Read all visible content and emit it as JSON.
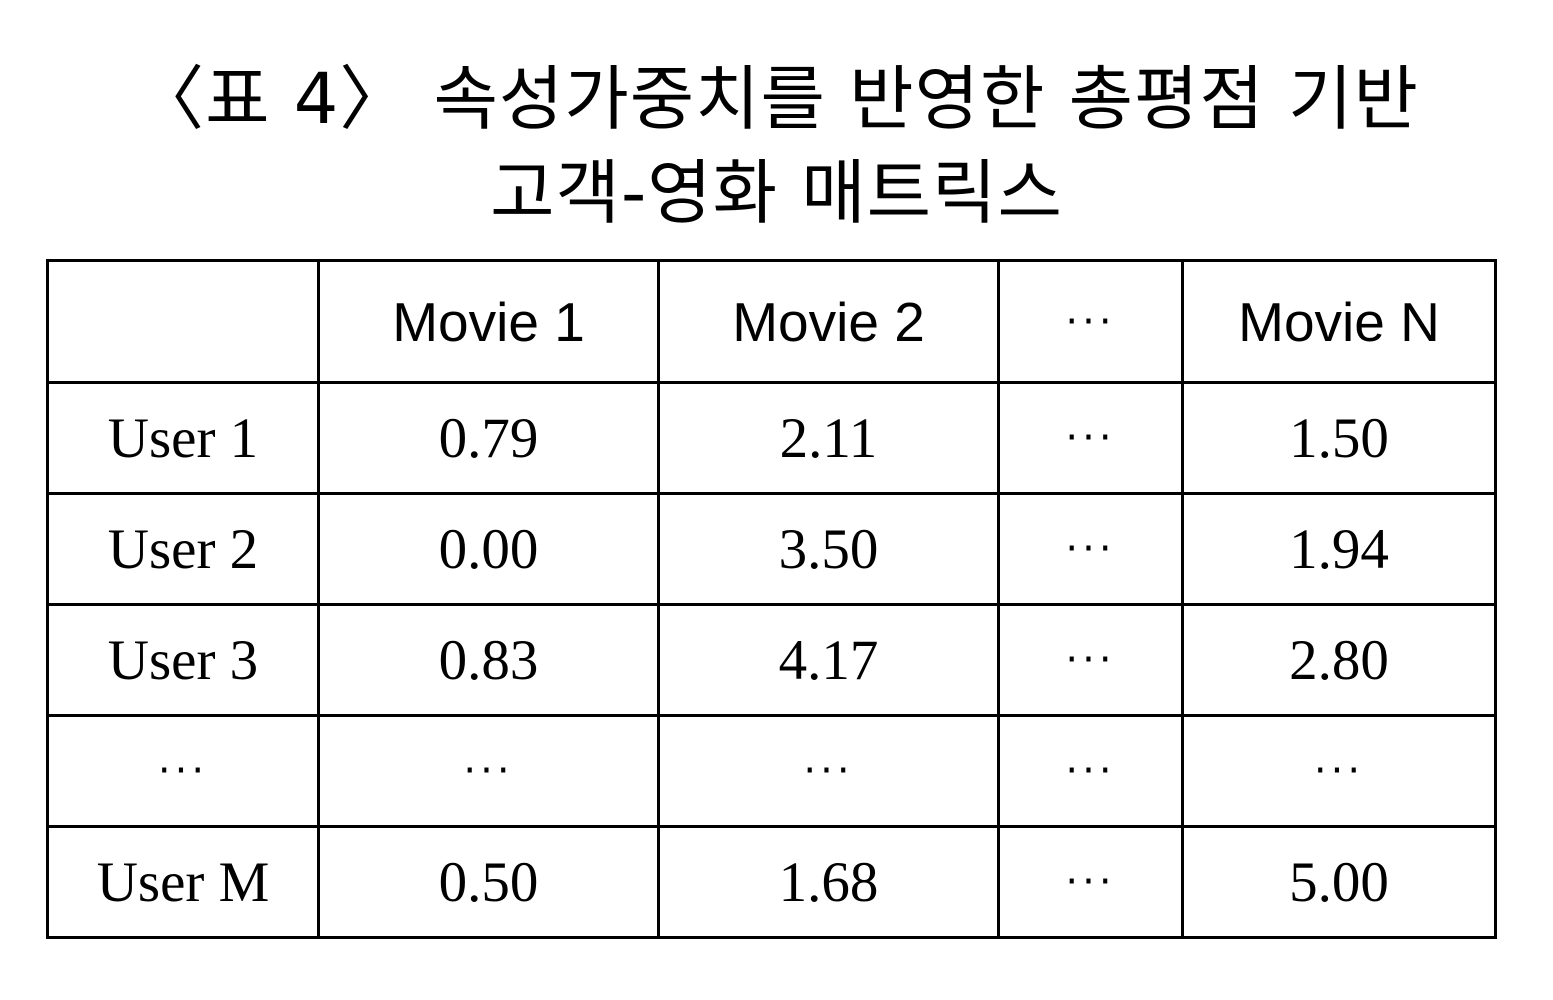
{
  "caption": {
    "line1": "〈표 4〉 속성가중치를 반영한 총평점 기반",
    "line2": "고객-영화 매트릭스"
  },
  "table": {
    "header": [
      "",
      "Movie 1",
      "Movie 2",
      "···",
      "Movie N"
    ],
    "rows": [
      [
        "User 1",
        "0.79",
        "2.11",
        "···",
        "1.50"
      ],
      [
        "User 2",
        "0.00",
        "3.50",
        "···",
        "1.94"
      ],
      [
        "User 3",
        "0.83",
        "4.17",
        "···",
        "2.80"
      ],
      [
        "···",
        "···",
        "···",
        "···",
        "···"
      ],
      [
        "User M",
        "0.50",
        "1.68",
        "···",
        "5.00"
      ]
    ]
  }
}
